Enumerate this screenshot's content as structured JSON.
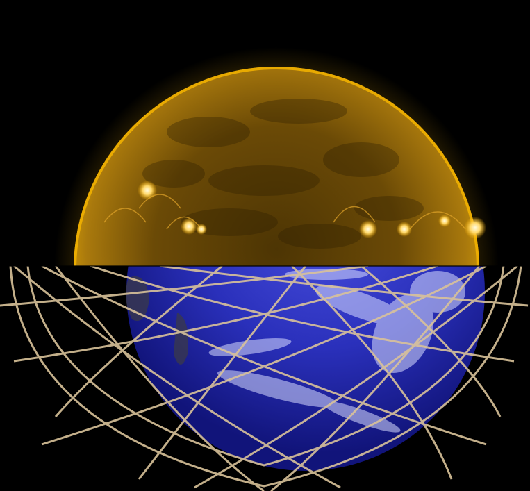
{
  "image": {
    "description_kind": "composite",
    "panels": [
      {
        "name": "sun",
        "subject": "solar-disk"
      },
      {
        "name": "earth",
        "subject": "earth-globe-with-orbit-grid"
      }
    ],
    "colors": {
      "background": "#000000",
      "sun_core": "#6b4a06",
      "sun_mid": "#a9790d",
      "sun_limb": "#f4b400",
      "sun_corona": "#7a5a07",
      "sun_bright_spot": "#fff2b0",
      "earth_ocean_deep": "#1a1fa6",
      "earth_ocean_mid": "#3a3fd0",
      "earth_cloud": "#d8dcff",
      "earth_land_dark": "#3b3a48",
      "grid_line": "#d9c29a"
    }
  }
}
